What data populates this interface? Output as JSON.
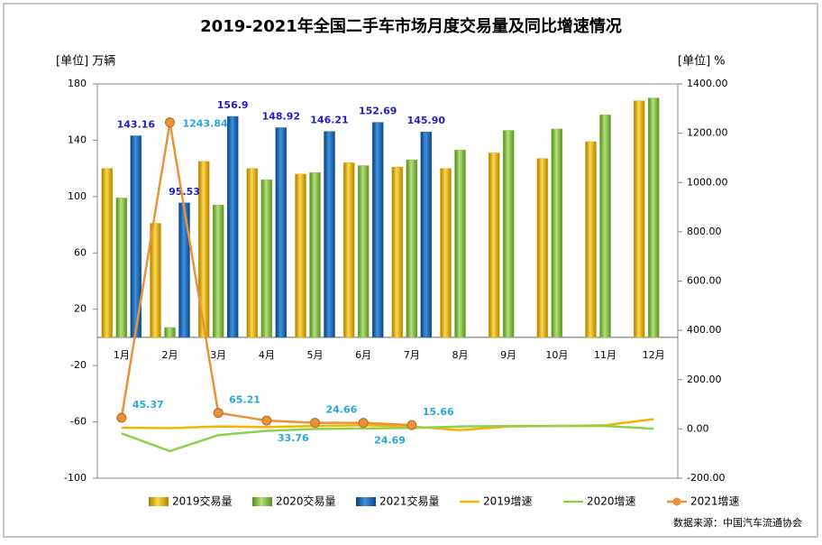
{
  "chart_data": {
    "type": "bar-line",
    "title": "2019-2021年全国二手车市场月度交易量及同比增速情况",
    "y_label": "[单位] 万辆",
    "y2_label": "[单位] %",
    "source": "数据来源：中国汽车流通协会",
    "categories": [
      "1月",
      "2月",
      "3月",
      "4月",
      "5月",
      "6月",
      "7月",
      "8月",
      "9月",
      "10月",
      "11月",
      "12月"
    ],
    "ylim": [
      -100,
      180
    ],
    "yticks": [
      180,
      140,
      100,
      60,
      20,
      -20,
      -60,
      -100
    ],
    "y2lim": [
      -200,
      1400
    ],
    "y2ticks": [
      {
        "value": 1400,
        "label": "1400.00"
      },
      {
        "value": 1200,
        "label": "1200.00"
      },
      {
        "value": 1000,
        "label": "1000.00"
      },
      {
        "value": 800,
        "label": "800.00"
      },
      {
        "value": 600,
        "label": "600.00"
      },
      {
        "value": 400,
        "label": "400.00"
      },
      {
        "value": 200,
        "label": "200.00"
      },
      {
        "value": 0,
        "label": "0.00"
      },
      {
        "value": -200,
        "label": "-200.00"
      }
    ],
    "series": [
      {
        "name": "2019交易量",
        "type": "bar",
        "color": "#e6b000",
        "values": [
          120,
          81,
          125,
          120,
          116,
          124,
          121,
          120,
          131,
          127,
          139,
          168
        ]
      },
      {
        "name": "2020交易量",
        "type": "bar",
        "color": "#86bf3c",
        "values": [
          99,
          7,
          94,
          112,
          117,
          122,
          126,
          133,
          147,
          148,
          158,
          170
        ]
      },
      {
        "name": "2021交易量",
        "type": "bar",
        "color": "#1c6cb5",
        "values": [
          143.16,
          95.53,
          156.9,
          148.92,
          146.21,
          152.69,
          145.9,
          null,
          null,
          null,
          null,
          null
        ],
        "value_labels": [
          "143.16",
          "95.53",
          "156.9",
          "148.92",
          "146.21",
          "152.69",
          "145.90",
          null,
          null,
          null,
          null,
          null
        ]
      },
      {
        "name": "2019增速",
        "type": "line",
        "axis": "y2",
        "color": "#f5b400",
        "values": [
          5,
          3,
          10,
          8,
          12,
          15,
          10,
          -5,
          10,
          12,
          15,
          40
        ]
      },
      {
        "name": "2020增速",
        "type": "line",
        "axis": "y2",
        "color": "#8ed14f",
        "values": [
          -18,
          -90,
          -25,
          -8,
          0,
          2,
          4,
          10,
          12,
          12,
          12,
          1
        ]
      },
      {
        "name": "2021增速",
        "type": "line",
        "axis": "y2",
        "color": "#e8923a",
        "markers": true,
        "values": [
          45.37,
          1243.84,
          65.21,
          33.76,
          24.66,
          24.69,
          15.66,
          null,
          null,
          null,
          null,
          null
        ]
      }
    ]
  }
}
